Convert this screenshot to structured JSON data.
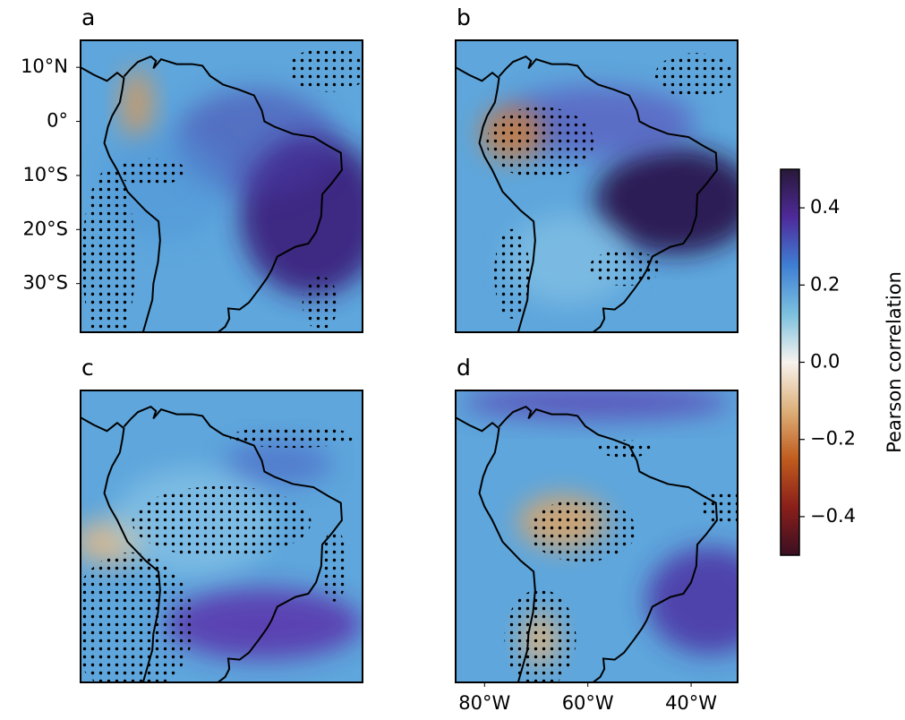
{
  "panels": [
    {
      "label": "a"
    },
    {
      "label": "b"
    },
    {
      "label": "c"
    },
    {
      "label": "d"
    }
  ],
  "xlim": [
    -85.6,
    -31
  ],
  "ylim": [
    -39,
    15
  ],
  "yticks": [
    {
      "value": 10,
      "label": "10°N"
    },
    {
      "value": 0,
      "label": "0°"
    },
    {
      "value": -10,
      "label": "10°S"
    },
    {
      "value": -20,
      "label": "20°S"
    },
    {
      "value": -30,
      "label": "30°S"
    }
  ],
  "xticks": [
    {
      "value": -80,
      "label": "80°W"
    },
    {
      "value": -60,
      "label": "60°W"
    },
    {
      "value": -40,
      "label": "40°W"
    }
  ],
  "colorbar": {
    "label": "Pearson correlation",
    "lim": [
      -0.5,
      0.5
    ],
    "ticks": [
      0.4,
      0.2,
      {
        "value": 0,
        "label": "0.0"
      },
      {
        "value": -0.2,
        "label": "−0.2"
      },
      {
        "value": -0.4,
        "label": "−0.4"
      }
    ],
    "colors": [
      "#3a0f22",
      "#8a1f1a",
      "#c05c1e",
      "#ddb07a",
      "#f7f3ee",
      "#7cc0df",
      "#3f7fd4",
      "#4e2a9a",
      "#281838"
    ]
  }
}
